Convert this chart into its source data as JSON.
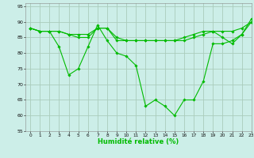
{
  "xlabel": "Humidité relative (%)",
  "bg_color": "#cceee8",
  "grid_color": "#aaccbb",
  "line_color": "#00bb00",
  "xlim": [
    -0.5,
    23
  ],
  "ylim": [
    55,
    96
  ],
  "xticks": [
    0,
    1,
    2,
    3,
    4,
    5,
    6,
    7,
    8,
    9,
    10,
    11,
    12,
    13,
    14,
    15,
    16,
    17,
    18,
    19,
    20,
    21,
    22,
    23
  ],
  "yticks": [
    55,
    60,
    65,
    70,
    75,
    80,
    85,
    90,
    95
  ],
  "series": [
    [
      88,
      87,
      87,
      82,
      73,
      75,
      82,
      89,
      84,
      80,
      79,
      76,
      63,
      65,
      63,
      60,
      65,
      65,
      71,
      83,
      83,
      84,
      86,
      91
    ],
    [
      88,
      87,
      87,
      87,
      86,
      86,
      86,
      88,
      88,
      85,
      84,
      84,
      84,
      84,
      84,
      84,
      84,
      85,
      86,
      87,
      87,
      87,
      88,
      90
    ],
    [
      88,
      87,
      87,
      87,
      86,
      85,
      85,
      88,
      88,
      84,
      84,
      84,
      84,
      84,
      84,
      84,
      85,
      86,
      87,
      87,
      85,
      83,
      86,
      90
    ]
  ]
}
